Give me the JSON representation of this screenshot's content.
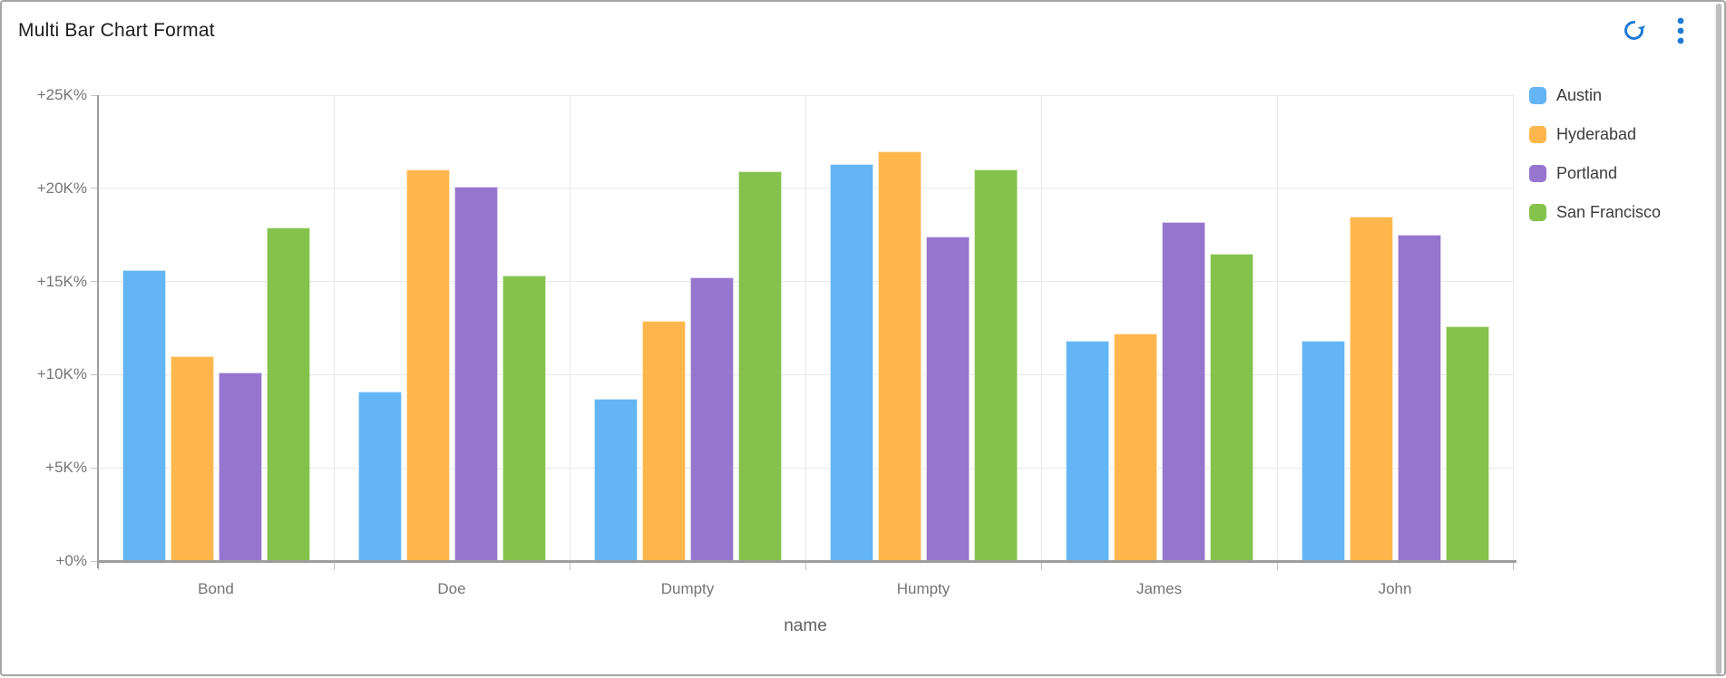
{
  "header": {
    "title": "Multi Bar Chart Format",
    "refresh_icon": "refresh",
    "menu_icon": "kebab-menu",
    "icon_color": "#1e7bd7"
  },
  "chart_data": {
    "type": "bar",
    "title": "Multi Bar Chart Format",
    "categories": [
      "Bond",
      "Doe",
      "Dumpty",
      "Humpty",
      "James",
      "John"
    ],
    "series": [
      {
        "name": "Austin",
        "color": "#64b5f6",
        "values": [
          15.6,
          9.1,
          8.7,
          21.3,
          11.8,
          11.8
        ]
      },
      {
        "name": "Hyderabad",
        "color": "#ffb74d",
        "values": [
          11.0,
          21.0,
          12.9,
          22.0,
          12.2,
          18.5
        ]
      },
      {
        "name": "Portland",
        "color": "#9575cd",
        "values": [
          10.1,
          20.1,
          15.2,
          17.4,
          18.2,
          17.5
        ]
      },
      {
        "name": "San Francisco",
        "color": "#85c24c",
        "values": [
          17.9,
          15.3,
          20.9,
          21.0,
          16.5,
          12.6
        ]
      }
    ],
    "value_unit": "K%",
    "ylim": [
      0,
      25
    ],
    "ytick_step": 5,
    "ytick_labels": [
      "+0%",
      "+5K%",
      "+10K%",
      "+15K%",
      "+20K%",
      "+25K%"
    ],
    "xlabel": "name",
    "grid": true,
    "legend_position": "right"
  }
}
